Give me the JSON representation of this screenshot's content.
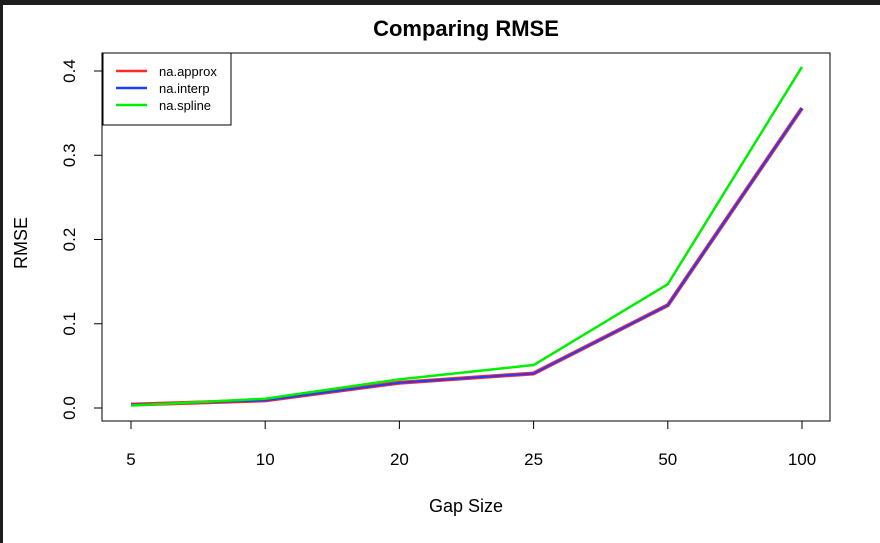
{
  "chart_data": {
    "type": "line",
    "title": "Comparing RMSE",
    "xlabel": "Gap Size",
    "ylabel": "RMSE",
    "categories": [
      "5",
      "10",
      "20",
      "25",
      "50",
      "100"
    ],
    "yticks": [
      "0.0",
      "0.1",
      "0.2",
      "0.3",
      "0.4"
    ],
    "ylim": [
      0,
      0.4
    ],
    "legend_position": "top-left",
    "series": [
      {
        "name": "na.approx",
        "color": "#ff2a2a",
        "values": [
          0.004,
          0.009,
          0.03,
          0.041,
          0.122,
          0.356
        ]
      },
      {
        "name": "na.interp",
        "color": "#1f3dff",
        "values": [
          0.004,
          0.009,
          0.03,
          0.041,
          0.122,
          0.356
        ]
      },
      {
        "name": "na.spline",
        "color": "#00ee00",
        "values": [
          0.003,
          0.011,
          0.034,
          0.051,
          0.147,
          0.405
        ]
      }
    ]
  }
}
